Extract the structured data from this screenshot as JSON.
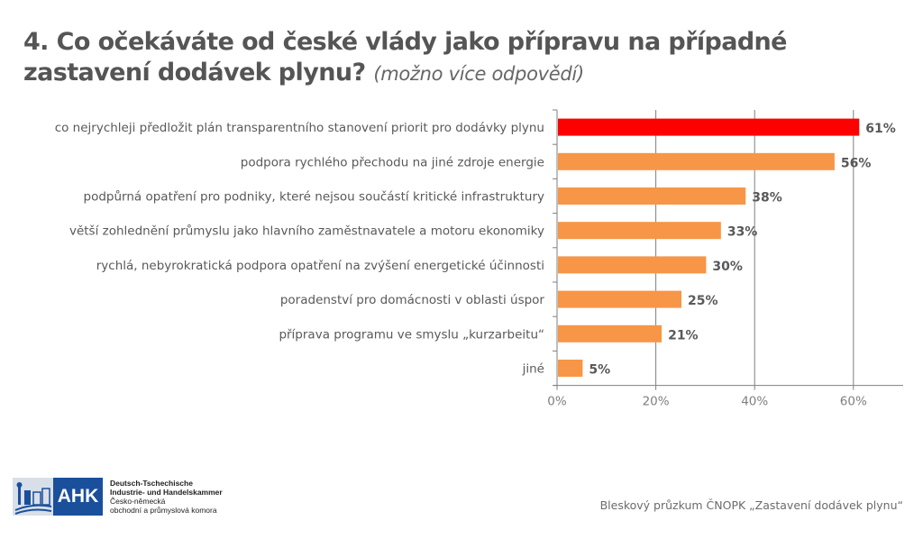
{
  "title": {
    "main": "4. Co očekáváte od české vlády jako přípravu na případné zastavení dodávek plynu?",
    "note": "(možno více odpovědí)"
  },
  "chart_data": {
    "type": "bar",
    "orientation": "horizontal",
    "title": "4. Co očekáváte od české vlády jako přípravu na případné zastavení dodávek plynu? (možno více odpovědí)",
    "categories": [
      "co nejrychleji předložit plán transparentního stanovení priorit pro dodávky plynu",
      "podpora rychlého přechodu na jiné zdroje energie",
      "podpůrná opatření pro podniky, které nejsou součástí kritické infrastruktury",
      "větší zohlednění průmyslu jako hlavního zaměstnavatele a motoru ekonomiky",
      "rychlá, nebyrokratická podpora opatření na zvýšení energetické účinnosti",
      "poradenství pro domácnosti v oblasti úspor",
      "příprava programu ve smyslu „kurzarbeitu“",
      "jiné"
    ],
    "values": [
      61,
      56,
      38,
      33,
      30,
      25,
      21,
      5
    ],
    "value_labels": [
      "61%",
      "56%",
      "38%",
      "33%",
      "30%",
      "25%",
      "21%",
      "5%"
    ],
    "highlight_index": 0,
    "colors": {
      "highlight": "#ff0000",
      "default": "#f79646",
      "grid": "#7f7f7f",
      "text": "#595959"
    },
    "xlabel": "",
    "ylabel": "",
    "xlim": [
      0,
      70
    ],
    "xticks": [
      0,
      20,
      40,
      60
    ],
    "xtick_labels": [
      "0%",
      "20%",
      "40%",
      "60%"
    ],
    "grid": true,
    "legend": "none"
  },
  "footer": {
    "logo": {
      "mark": "AHK",
      "line1": "Deutsch-Tschechische",
      "line2": "Industrie- und Handelskammer",
      "line3": "Česko-německá",
      "line4": "obchodní a průmyslová komora"
    },
    "source": "Bleskový průzkum ČNOPK „Zastavení dodávek plynu“"
  }
}
